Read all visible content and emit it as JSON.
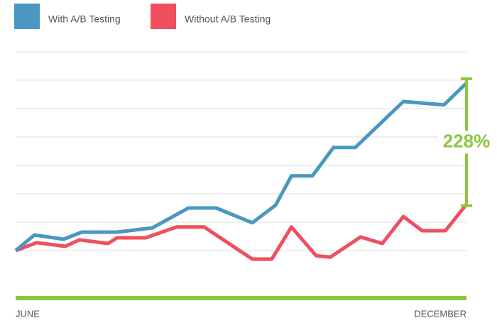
{
  "chart_data": {
    "type": "line",
    "annotation": "228%",
    "xlim": [
      0,
      6
    ],
    "xticks": [
      {
        "value": 0,
        "label": "JUNE"
      },
      {
        "value": 6,
        "label": "DECEMBER"
      }
    ],
    "ylim": [
      -1.7,
      7
    ],
    "yticks": [
      0,
      1,
      2,
      3,
      4,
      5,
      6,
      7
    ],
    "grid": true,
    "series": [
      {
        "name": "With A/B Testing",
        "color": "#4a97c2",
        "x": [
          0,
          0.25,
          0.64,
          0.88,
          1.35,
          1.82,
          2.3,
          2.67,
          3.15,
          3.46,
          3.67,
          3.95,
          4.23,
          4.52,
          5.16,
          5.7,
          6
        ],
        "values": [
          0,
          0.55,
          0.4,
          0.65,
          0.65,
          0.8,
          1.5,
          1.5,
          0.98,
          1.6,
          2.63,
          2.63,
          3.63,
          3.63,
          5.25,
          5.13,
          5.9
        ]
      },
      {
        "name": "Without A/B Testing",
        "color": "#ef4f5f",
        "x": [
          0,
          0.28,
          0.66,
          0.85,
          1.23,
          1.35,
          1.73,
          2.14,
          2.51,
          3.15,
          3.41,
          3.67,
          4.0,
          4.19,
          4.59,
          4.88,
          5.16,
          5.41,
          5.72,
          6
        ],
        "values": [
          0,
          0.28,
          0.15,
          0.38,
          0.25,
          0.45,
          0.45,
          0.83,
          0.83,
          -0.3,
          -0.3,
          0.83,
          -0.18,
          -0.23,
          0.48,
          0.25,
          1.2,
          0.7,
          0.7,
          1.63
        ]
      }
    ],
    "annotation_color": "#8dc63f"
  }
}
